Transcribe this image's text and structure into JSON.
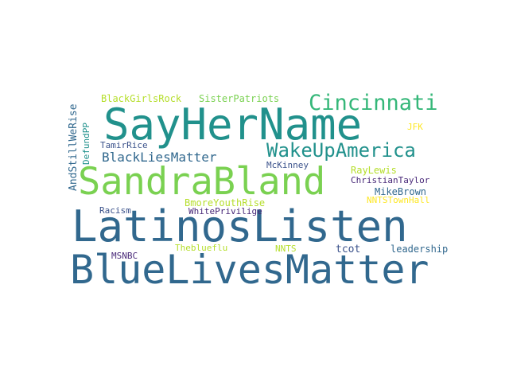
{
  "words": [
    {
      "text": "LatinosListen",
      "color": "#31688e"
    },
    {
      "text": "BlueLivesMatter",
      "color": "#31688e"
    },
    {
      "text": "SayHerName",
      "color": "#21918c"
    },
    {
      "text": "SandraBland",
      "color": "#7ad151"
    },
    {
      "text": "Cincinnati",
      "color": "#35b779"
    },
    {
      "text": "WakeUpAmerica",
      "color": "#21918c"
    },
    {
      "text": "BlackLiesMatter",
      "color": "#31688e"
    },
    {
      "text": "BlackGirlsRock",
      "color": "#b5de2b"
    },
    {
      "text": "SisterPatriots",
      "color": "#7ad151"
    },
    {
      "text": "TamirRice",
      "color": "#3b528b"
    },
    {
      "text": "McKinney",
      "color": "#3b528b"
    },
    {
      "text": "RayLewis",
      "color": "#b5de2b"
    },
    {
      "text": "ChristianTaylor",
      "color": "#482878"
    },
    {
      "text": "MikeBrown",
      "color": "#31688e"
    },
    {
      "text": "NNTSTownHall",
      "color": "#fde725"
    },
    {
      "text": "JFK",
      "color": "#fde725"
    },
    {
      "text": "Racism",
      "color": "#3b528b"
    },
    {
      "text": "BmoreYouthRise",
      "color": "#b5de2b"
    },
    {
      "text": "WhitePrivilige",
      "color": "#482878"
    },
    {
      "text": "MSNBC",
      "color": "#482878"
    },
    {
      "text": "Theblueflu",
      "color": "#b5de2b"
    },
    {
      "text": "NNTS",
      "color": "#b5de2b"
    },
    {
      "text": "tcot",
      "color": "#3b528b"
    },
    {
      "text": "leadership",
      "color": "#31688e"
    },
    {
      "text": "AndStillWeRise",
      "color": "#31688e"
    },
    {
      "text": "DefundPP",
      "color": "#21918c"
    }
  ]
}
